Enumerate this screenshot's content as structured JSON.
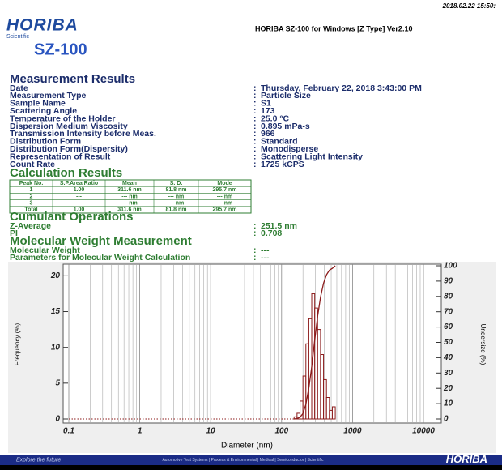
{
  "header": {
    "timestamp": "2018.02.22 15:50:",
    "logo": "HORIBA",
    "logo_tagline": "Scientific",
    "model": "SZ-100",
    "software": "HORIBA SZ-100 for Windows [Z Type] Ver2.10"
  },
  "separator": ":",
  "measurement": {
    "title": "Measurement Results",
    "rows": [
      [
        "Date",
        "Thursday, February 22, 2018 3:43:00 PM"
      ],
      [
        "Measurement Type",
        "Particle Size"
      ],
      [
        "Sample Name",
        "S1"
      ],
      [
        "Scattering Angle",
        "173"
      ],
      [
        "Temperature of the Holder",
        "25.0 °C"
      ],
      [
        "Dispersion Medium Viscosity",
        "0.895 mPa-s"
      ],
      [
        "Transmission Intensity before Meas.",
        "966"
      ],
      [
        "Distribution Form",
        "Standard"
      ],
      [
        "Distribution Form(Dispersity)",
        "Monodisperse"
      ],
      [
        "Representation of Result",
        "Scattering Light Intensity"
      ],
      [
        "Count Rate",
        "1725 kCPS"
      ]
    ]
  },
  "calculation": {
    "title": "Calculation Results",
    "columns": [
      "Peak No.",
      "S.P.Area Ratio",
      "Mean",
      "S. D.",
      "Mode"
    ],
    "rows": [
      [
        "1",
        "1.00",
        "311.6 nm",
        "81.8 nm",
        "295.7 nm"
      ],
      [
        "2",
        "---",
        "--- nm",
        "--- nm",
        "--- nm"
      ],
      [
        "3",
        "---",
        "--- nm",
        "--- nm",
        "--- nm"
      ],
      [
        "Total",
        "1.00",
        "311.6 nm",
        "81.8 nm",
        "295.7 nm"
      ]
    ]
  },
  "cumulant": {
    "title": "Cumulant Operations",
    "rows": [
      [
        "Z-Average",
        "251.5 nm"
      ],
      [
        "PI",
        "0.708"
      ]
    ]
  },
  "molecular": {
    "title": "Molecular Weight Measurement",
    "rows": [
      [
        "Molecular Weight",
        "---"
      ],
      [
        "Parameters for Molecular Weight Calculation",
        "---"
      ]
    ]
  },
  "chart_data": {
    "type": "histogram",
    "xlabel": "Diameter (nm)",
    "ylabel": "Frequency (%)",
    "y2label": "Undersize (%)",
    "log_x": true,
    "grid": true,
    "xlim": [
      0.1,
      10000
    ],
    "xticks": [
      0.1,
      1,
      10,
      100,
      1000,
      10000
    ],
    "ylim": [
      0,
      21.4
    ],
    "yticks": [
      0,
      5,
      10,
      15,
      20
    ],
    "y2lim": [
      0,
      100
    ],
    "y2ticks": [
      0,
      10,
      20,
      30,
      40,
      50,
      60,
      70,
      80,
      90,
      100
    ],
    "bins": [
      150,
      165,
      182,
      200,
      220,
      242,
      266,
      293,
      322,
      354,
      390,
      429,
      472,
      519,
      571
    ],
    "values": [
      0.3,
      0.8,
      2.5,
      6,
      10.5,
      14,
      17.5,
      15.5,
      12.5,
      9,
      5.5,
      3,
      1.2,
      1.7
    ],
    "color": "#8b1a1a",
    "cumulative": {
      "axis": "y2",
      "color": "#8b1a1a",
      "x": [
        150,
        165,
        182,
        200,
        220,
        242,
        266,
        293,
        322,
        354,
        390,
        429,
        472,
        519,
        571
      ],
      "values": [
        0,
        0.3,
        1.1,
        3.6,
        9.6,
        20.1,
        34.1,
        51.6,
        67.1,
        79.6,
        88.6,
        94.1,
        97.1,
        98.3,
        100
      ]
    }
  },
  "footer": {
    "slogan": "Explore the future",
    "divisions": "Automotive Test Systems | Process & Environmental | Medical | Semiconductor | Scientific",
    "brand": "HORIBA"
  }
}
